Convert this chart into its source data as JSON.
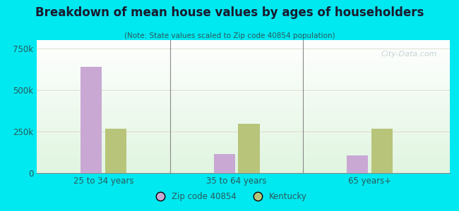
{
  "title": "Breakdown of mean house values by ages of householders",
  "subtitle": "(Note: State values scaled to Zip code 40854 population)",
  "categories": [
    "25 to 34 years",
    "35 to 64 years",
    "65 years+"
  ],
  "zip_values": [
    640000,
    115000,
    105000
  ],
  "state_values": [
    265000,
    295000,
    265000
  ],
  "zip_color": "#c9a8d4",
  "state_color": "#b8c47a",
  "ylim": [
    0,
    800000
  ],
  "yticks": [
    0,
    250000,
    500000,
    750000
  ],
  "ytick_labels": [
    "0",
    "250k",
    "500k",
    "750k"
  ],
  "background_outer": "#00e8f0",
  "legend_zip_label": "Zip code 40854",
  "legend_state_label": "Kentucky",
  "bar_width": 0.32,
  "group_positions": [
    1.0,
    3.0,
    5.0
  ],
  "watermark": "City-Data.com",
  "title_color": "#1a1a2e",
  "subtitle_color": "#2a5a5a",
  "tick_color": "#2a5a5a"
}
